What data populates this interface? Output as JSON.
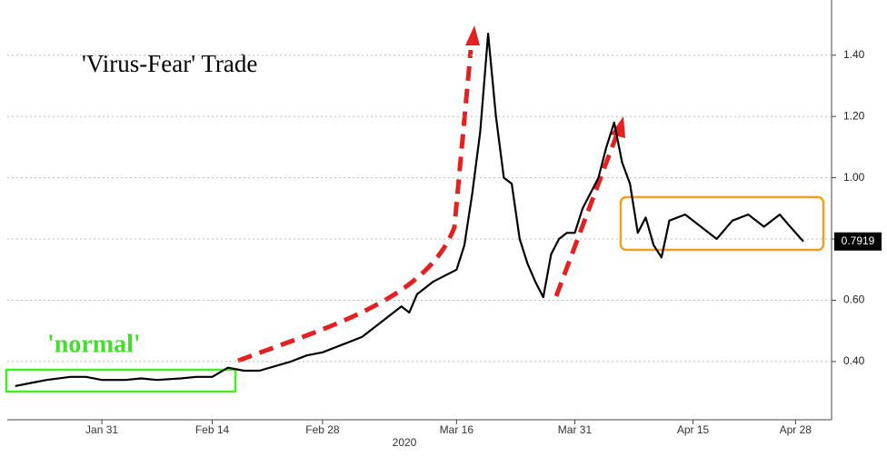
{
  "chart_data": {
    "type": "line",
    "title": "'Virus-Fear' Trade",
    "annotation": "'normal'",
    "x_label": "2020",
    "x": [
      "2020-01-20",
      "2020-01-22",
      "2020-01-24",
      "2020-01-27",
      "2020-01-29",
      "2020-01-31",
      "2020-02-03",
      "2020-02-05",
      "2020-02-07",
      "2020-02-10",
      "2020-02-12",
      "2020-02-14",
      "2020-02-16",
      "2020-02-18",
      "2020-02-20",
      "2020-02-24",
      "2020-02-26",
      "2020-02-28",
      "2020-03-02",
      "2020-03-04",
      "2020-03-06",
      "2020-03-09",
      "2020-03-10",
      "2020-03-11",
      "2020-03-12",
      "2020-03-13",
      "2020-03-16",
      "2020-03-17",
      "2020-03-18",
      "2020-03-19",
      "2020-03-20",
      "2020-03-21",
      "2020-03-22",
      "2020-03-23",
      "2020-03-24",
      "2020-03-25",
      "2020-03-26",
      "2020-03-27",
      "2020-03-28",
      "2020-03-29",
      "2020-03-30",
      "2020-03-31",
      "2020-04-01",
      "2020-04-02",
      "2020-04-03",
      "2020-04-04",
      "2020-04-05",
      "2020-04-06",
      "2020-04-07",
      "2020-04-08",
      "2020-04-09",
      "2020-04-10",
      "2020-04-11",
      "2020-04-12",
      "2020-04-14",
      "2020-04-16",
      "2020-04-18",
      "2020-04-20",
      "2020-04-22",
      "2020-04-24",
      "2020-04-26",
      "2020-04-27",
      "2020-04-29"
    ],
    "values": [
      0.32,
      0.33,
      0.34,
      0.35,
      0.35,
      0.34,
      0.34,
      0.345,
      0.34,
      0.345,
      0.35,
      0.35,
      0.38,
      0.37,
      0.37,
      0.4,
      0.42,
      0.43,
      0.46,
      0.48,
      0.52,
      0.58,
      0.56,
      0.62,
      0.64,
      0.66,
      0.7,
      0.78,
      0.95,
      1.15,
      1.47,
      1.2,
      1.0,
      0.98,
      0.8,
      0.72,
      0.66,
      0.61,
      0.75,
      0.8,
      0.82,
      0.82,
      0.9,
      0.95,
      1.0,
      1.1,
      1.18,
      1.05,
      0.98,
      0.82,
      0.87,
      0.78,
      0.74,
      0.86,
      0.88,
      0.84,
      0.8,
      0.86,
      0.88,
      0.84,
      0.88,
      0.85,
      0.7919
    ],
    "color": "#000000",
    "xlim": [
      "2020-01-19",
      "2020-05-02"
    ],
    "xticks": [
      {
        "value": "2020-01-31",
        "label": "Jan 31"
      },
      {
        "value": "2020-02-14",
        "label": "Feb 14"
      },
      {
        "value": "2020-02-28",
        "label": "Feb 28"
      },
      {
        "value": "2020-03-16",
        "label": "Mar 16"
      },
      {
        "value": "2020-03-31",
        "label": "Mar 31"
      },
      {
        "value": "2020-04-15",
        "label": "Apr 15"
      },
      {
        "value": "2020-04-28",
        "label": "Apr 28"
      }
    ],
    "ylim": [
      0.21,
      1.58
    ],
    "yticks": [
      {
        "value": 0.4,
        "label": "0.40"
      },
      {
        "value": 0.6,
        "label": "0.60"
      },
      {
        "value": 0.8,
        "label": "0.80"
      },
      {
        "value": 1.0,
        "label": "1.00"
      },
      {
        "value": 1.2,
        "label": "1.20"
      },
      {
        "value": 1.4,
        "label": "1.40"
      }
    ],
    "grid": true
  }
}
